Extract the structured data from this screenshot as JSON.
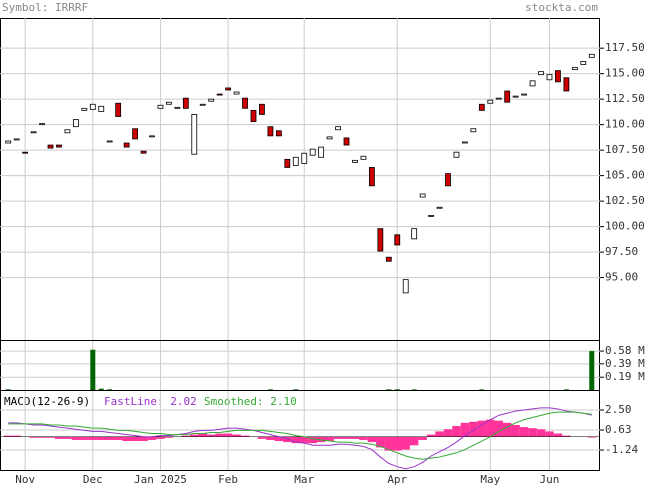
{
  "chart_data": [
    {
      "type": "candlestick",
      "title": "Symbol: IRRRF",
      "source": "stockta.com",
      "categories": [
        null,
        null,
        "Nov",
        null,
        null,
        null,
        null,
        null,
        null,
        null,
        "Dec",
        null,
        null,
        null,
        null,
        null,
        null,
        null,
        "Jan 2025",
        null,
        null,
        null,
        null,
        null,
        null,
        null,
        "Feb",
        null,
        null,
        null,
        null,
        null,
        null,
        null,
        null,
        "Mar",
        null,
        null,
        null,
        null,
        null,
        null,
        null,
        null,
        null,
        null,
        "Apr",
        null,
        null,
        null,
        null,
        null,
        null,
        null,
        null,
        null,
        null,
        "May",
        null,
        null,
        null,
        null,
        null,
        null,
        "Jun",
        null,
        null,
        null,
        null,
        null
      ],
      "open": [
        108.2,
        108.5,
        107.3,
        109.2,
        110.0,
        108.0,
        108.0,
        109.2,
        109.8,
        111.4,
        111.5,
        111.3,
        108.3,
        112.1,
        108.2,
        109.6,
        107.4,
        108.8,
        111.6,
        112.0,
        111.6,
        112.6,
        107.1,
        111.9,
        112.3,
        113.0,
        113.6,
        113.0,
        112.6,
        111.4,
        112.0,
        109.8,
        109.4,
        106.6,
        106.0,
        106.2,
        107.0,
        106.8,
        108.6,
        109.5,
        108.7,
        106.3,
        106.6,
        105.8,
        99.8,
        97.0,
        99.2,
        93.5,
        98.8,
        102.9,
        101.0,
        101.8,
        105.2,
        106.8,
        108.2,
        109.3,
        112.0,
        112.1,
        112.5,
        113.3,
        112.7,
        112.9,
        113.8,
        114.9,
        114.4,
        115.3,
        114.6,
        115.4,
        115.9,
        116.6
      ],
      "close": [
        108.4,
        108.6,
        107.2,
        109.3,
        110.1,
        107.7,
        107.8,
        109.5,
        110.5,
        111.6,
        112.0,
        111.8,
        108.4,
        110.8,
        107.8,
        108.6,
        107.2,
        108.9,
        111.9,
        112.2,
        111.7,
        111.6,
        111.0,
        112.0,
        112.5,
        112.9,
        113.4,
        113.2,
        111.6,
        110.3,
        111.0,
        108.9,
        108.9,
        105.8,
        106.8,
        107.2,
        107.6,
        107.8,
        108.8,
        109.8,
        108.0,
        106.5,
        106.9,
        104.0,
        97.6,
        96.6,
        98.2,
        94.8,
        99.8,
        103.2,
        101.1,
        101.9,
        104.0,
        107.3,
        108.3,
        109.6,
        111.4,
        112.4,
        112.6,
        112.2,
        112.8,
        113.0,
        114.3,
        115.2,
        114.9,
        114.2,
        113.3,
        115.6,
        116.2,
        116.9
      ],
      "up_color": "#ffffff",
      "down_color": "#cc0000",
      "ylim": [
        88.88,
        120.46
      ],
      "yticks": [
        {
          "value": 95,
          "label": "95.00"
        },
        {
          "value": 97.5,
          "label": "97.50"
        },
        {
          "value": 100,
          "label": "100.00"
        },
        {
          "value": 102.5,
          "label": "102.50"
        },
        {
          "value": 105,
          "label": "105.00"
        },
        {
          "value": 107.5,
          "label": "107.50"
        },
        {
          "value": 110,
          "label": "110.00"
        },
        {
          "value": 112.5,
          "label": "112.50"
        },
        {
          "value": 115,
          "label": "115.00"
        },
        {
          "value": 117.5,
          "label": "117.50"
        }
      ],
      "grid": true
    },
    {
      "type": "bar",
      "color": "#006600",
      "values": [
        0.01,
        0,
        0,
        0,
        0,
        0,
        0,
        0,
        0,
        0,
        0.6,
        0.02,
        0.01,
        0,
        0,
        0,
        0,
        0,
        0,
        0,
        0,
        0,
        0,
        0,
        0,
        0,
        0,
        0,
        0,
        0,
        0,
        0.01,
        0,
        0,
        0.01,
        0,
        0,
        0,
        0,
        0,
        0,
        0,
        0,
        0,
        0,
        0.01,
        0.01,
        0,
        0.01,
        0,
        0,
        0,
        0,
        0,
        0,
        0,
        0.01,
        0,
        0,
        0,
        0,
        0,
        0,
        0,
        0,
        0,
        0.01,
        0,
        0,
        0.58
      ],
      "ylim": [
        0,
        0.745
      ],
      "yticks": [
        {
          "value": 0.19,
          "label": "0.19 M"
        },
        {
          "value": 0.39,
          "label": "0.39 M"
        },
        {
          "value": 0.58,
          "label": "0.58 M"
        }
      ],
      "grid": true
    },
    {
      "type": "macd",
      "title": "MACD(12-26-9)",
      "series": [
        {
          "name": "FastLine: 2.02",
          "color": "#9933cc",
          "values": [
            1.3,
            1.3,
            1.2,
            1.1,
            1.1,
            1.0,
            0.9,
            0.8,
            0.7,
            0.6,
            0.5,
            0.5,
            0.4,
            0.3,
            0.2,
            0.1,
            0.0,
            0.0,
            0.1,
            0.1,
            0.2,
            0.3,
            0.5,
            0.6,
            0.6,
            0.7,
            0.8,
            0.8,
            0.7,
            0.6,
            0.4,
            0.2,
            0.0,
            -0.2,
            -0.5,
            -0.6,
            -0.8,
            -0.8,
            -0.8,
            -0.7,
            -0.7,
            -0.8,
            -0.9,
            -1.2,
            -1.9,
            -2.5,
            -2.8,
            -3.0,
            -2.8,
            -2.4,
            -1.8,
            -1.4,
            -1.0,
            -0.5,
            0.1,
            0.6,
            1.1,
            1.6,
            2.0,
            2.2,
            2.4,
            2.5,
            2.6,
            2.7,
            2.7,
            2.6,
            2.4,
            2.3,
            2.2,
            2.02
          ]
        },
        {
          "name": "Smoothed: 2.10",
          "color": "#33aa33",
          "values": [
            1.2,
            1.2,
            1.2,
            1.2,
            1.2,
            1.1,
            1.1,
            1.0,
            1.0,
            0.9,
            0.8,
            0.8,
            0.7,
            0.6,
            0.6,
            0.5,
            0.4,
            0.3,
            0.3,
            0.2,
            0.2,
            0.2,
            0.3,
            0.3,
            0.4,
            0.4,
            0.5,
            0.6,
            0.6,
            0.6,
            0.6,
            0.5,
            0.4,
            0.3,
            0.1,
            0.0,
            -0.2,
            -0.3,
            -0.4,
            -0.5,
            -0.5,
            -0.6,
            -0.6,
            -0.7,
            -0.9,
            -1.2,
            -1.5,
            -1.8,
            -2.0,
            -2.1,
            -2.0,
            -1.9,
            -1.7,
            -1.5,
            -1.2,
            -0.8,
            -0.4,
            0.0,
            0.5,
            0.9,
            1.3,
            1.6,
            1.8,
            2.0,
            2.2,
            2.3,
            2.3,
            2.3,
            2.2,
            2.1
          ]
        }
      ],
      "histogram": {
        "color": "#ff3399",
        "values": [
          0.1,
          0.1,
          0,
          -0.1,
          -0.1,
          -0.1,
          -0.2,
          -0.2,
          -0.3,
          -0.3,
          -0.3,
          -0.3,
          -0.3,
          -0.3,
          -0.4,
          -0.4,
          -0.4,
          -0.3,
          -0.2,
          -0.1,
          0,
          0.1,
          0.2,
          0.3,
          0.2,
          0.3,
          0.3,
          0.2,
          0.1,
          0,
          -0.2,
          -0.3,
          -0.4,
          -0.5,
          -0.6,
          -0.6,
          -0.6,
          -0.5,
          -0.4,
          -0.2,
          -0.2,
          -0.2,
          -0.3,
          -0.5,
          -1.0,
          -1.3,
          -1.3,
          -1.2,
          -0.8,
          -0.3,
          0.2,
          0.5,
          0.7,
          1.0,
          1.3,
          1.4,
          1.5,
          1.6,
          1.5,
          1.3,
          1.1,
          0.9,
          0.8,
          0.7,
          0.5,
          0.3,
          0.1,
          0,
          0,
          -0.08
        ]
      },
      "ylim": [
        -3.11,
        4.37
      ],
      "yticks": [
        {
          "value": -1.24,
          "label": "-1.24"
        },
        {
          "value": 0.63,
          "label": "0.63"
        },
        {
          "value": 2.5,
          "label": "2.50"
        }
      ],
      "grid": true
    }
  ]
}
